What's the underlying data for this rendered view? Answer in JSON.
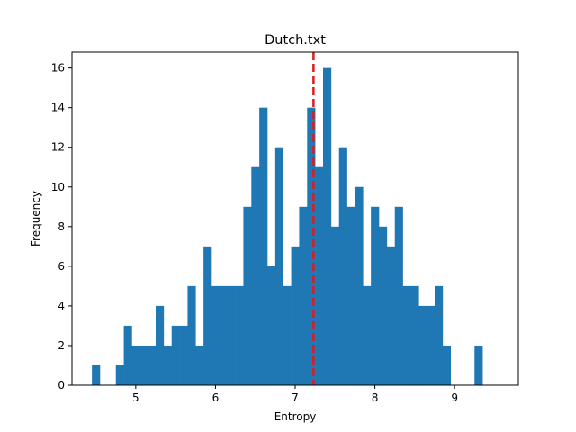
{
  "chart_data": {
    "type": "bar",
    "subtype": "histogram",
    "title": "Dutch.txt",
    "xlabel": "Entropy",
    "ylabel": "Frequency",
    "xlim": [
      4.2,
      9.8
    ],
    "ylim": [
      0,
      16.8
    ],
    "x_ticks": [
      5,
      6,
      7,
      8,
      9
    ],
    "y_ticks": [
      0,
      2,
      4,
      6,
      8,
      10,
      12,
      14,
      16
    ],
    "bin_start": 4.45,
    "bin_width": 0.1,
    "counts": [
      1,
      0,
      0,
      1,
      3,
      2,
      2,
      2,
      4,
      2,
      3,
      3,
      5,
      2,
      7,
      5,
      5,
      5,
      5,
      9,
      11,
      14,
      6,
      12,
      5,
      7,
      9,
      14,
      11,
      16,
      8,
      12,
      9,
      10,
      5,
      9,
      8,
      7,
      9,
      5,
      5,
      4,
      4,
      5,
      2,
      0,
      0,
      0,
      2
    ],
    "bar_color": "#1f77b4",
    "reference_line": {
      "x": 7.23,
      "color": "#e31a1c",
      "style": "dashed"
    },
    "grid": false,
    "legend": "none"
  }
}
